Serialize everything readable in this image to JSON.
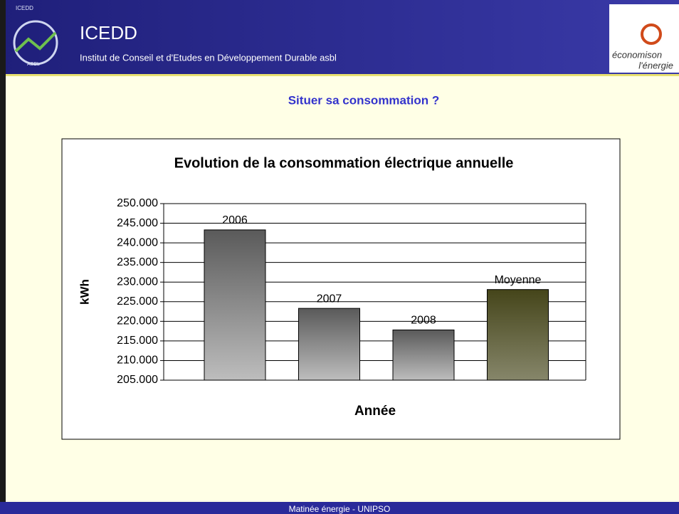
{
  "header": {
    "title": "ICEDD",
    "subtitle": "Institut de Conseil et d'Etudes en Développement Durable asbl",
    "logo_left": [
      "ICEDD",
      "ASBL"
    ],
    "logo_right": [
      "économison",
      "l'énergie"
    ]
  },
  "heading": "Situer sa consommation ?",
  "footer": "Matinée énergie - UNIPSO",
  "chart_data": {
    "type": "bar",
    "title": "Evolution de la consommation électrique annuelle",
    "x_label": "Année",
    "y_label": "kWh",
    "categories": [
      "2006",
      "2007",
      "2008",
      "Moyenne"
    ],
    "values": [
      243300,
      223300,
      217800,
      228100
    ],
    "colors": [
      "#5a5a5a",
      "#5a5a5a",
      "#5a5a5a",
      "#45451a"
    ],
    "ylim": [
      205000,
      250000
    ],
    "yticks": [
      {
        "value": 205000,
        "label": "205.000"
      },
      {
        "value": 210000,
        "label": "210.000"
      },
      {
        "value": 215000,
        "label": "215.000"
      },
      {
        "value": 220000,
        "label": "220.000"
      },
      {
        "value": 225000,
        "label": "225.000"
      },
      {
        "value": 230000,
        "label": "230.000"
      },
      {
        "value": 235000,
        "label": "235.000"
      },
      {
        "value": 240000,
        "label": "240.000"
      },
      {
        "value": 245000,
        "label": "245.000"
      },
      {
        "value": 250000,
        "label": "250.000"
      }
    ],
    "grid": true
  }
}
